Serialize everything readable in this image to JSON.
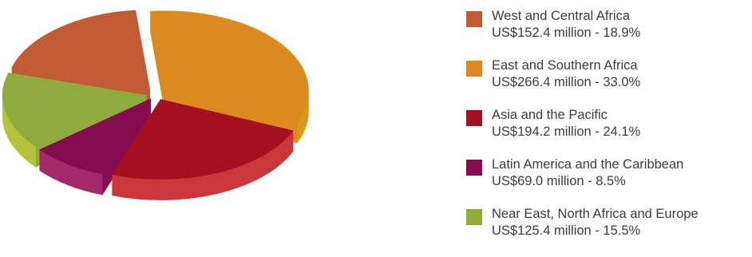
{
  "chart_data": {
    "type": "pie",
    "style": "3d exploded",
    "legend_position": "right",
    "series": [
      {
        "name": "West and Central Africa",
        "label": "US$152.4 million - 18.9%",
        "value": 152.4,
        "percent": 18.9,
        "color": "#c25a34",
        "side_color": "#a8402a"
      },
      {
        "name": "East and Southern Africa",
        "label": "US$266.4 million - 33.0%",
        "value": 266.4,
        "percent": 33.0,
        "color": "#db8a1e",
        "side_color": "#d79a14"
      },
      {
        "name": "Asia and the Pacific",
        "label": "US$194.2 million - 24.1%",
        "value": 194.2,
        "percent": 24.1,
        "color": "#a51021",
        "side_color": "#c9373a"
      },
      {
        "name": "Latin America and the Caribbean",
        "label": "US$69.0 million - 8.5%",
        "value": 69.0,
        "percent": 8.5,
        "color": "#850c4f",
        "side_color": "#a22a6a"
      },
      {
        "name": "Near East, North Africa and Europe",
        "label": "US$125.4 million - 15.5%",
        "value": 125.4,
        "percent": 15.5,
        "color": "#8fab3c",
        "side_color": "#b5c33a"
      }
    ]
  }
}
